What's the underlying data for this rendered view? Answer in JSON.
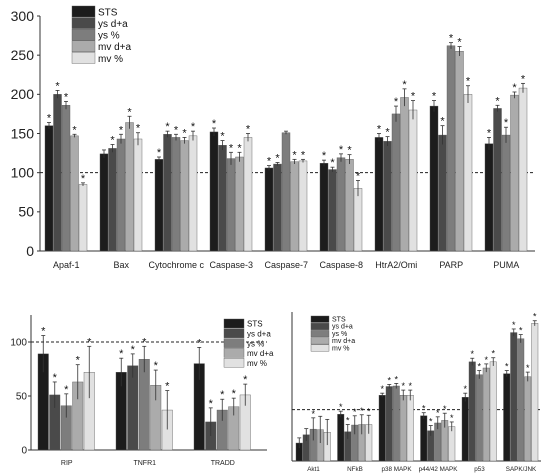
{
  "legend_labels": [
    "STS",
    "ys d+a",
    "ys %",
    "mv d+a",
    "mv %"
  ],
  "colors": {
    "series": [
      "#1c1c1c",
      "#4a4a4a",
      "#7d7d7d",
      "#ababab",
      "#e1e1e1"
    ],
    "reference_line": "#222222",
    "axis": "#333333"
  },
  "chart_data": [
    {
      "type": "bar",
      "panel": "top",
      "categories": [
        "Apaf-1",
        "Bax",
        "Cytochrome c",
        "Caspase-3",
        "Caspase-7",
        "Caspase-8",
        "HtrA2/Omi",
        "PARP",
        "PUMA"
      ],
      "series": [
        {
          "name": "STS",
          "values": [
            160,
            124,
            117,
            152,
            106,
            112,
            145,
            185,
            137
          ],
          "errors": [
            4,
            5,
            3,
            5,
            3,
            4,
            5,
            7,
            8
          ]
        },
        {
          "name": "ys d+a",
          "values": [
            200,
            131,
            149,
            135,
            111,
            104,
            140,
            148,
            182
          ],
          "errors": [
            5,
            5,
            4,
            6,
            2,
            3,
            6,
            12,
            4
          ]
        },
        {
          "name": "ys %",
          "values": [
            186,
            143,
            145,
            118,
            151,
            119,
            175,
            262,
            148
          ],
          "errors": [
            5,
            6,
            4,
            8,
            2,
            5,
            10,
            4,
            10
          ]
        },
        {
          "name": "mv d+a",
          "values": [
            147,
            164,
            141,
            120,
            114,
            117,
            196,
            255,
            199
          ],
          "errors": [
            2,
            8,
            4,
            6,
            3,
            6,
            11,
            6,
            4
          ]
        },
        {
          "name": "mv %",
          "values": [
            85,
            143,
            147,
            145,
            115,
            80,
            180,
            200,
            208
          ],
          "errors": [
            2,
            8,
            6,
            5,
            2,
            10,
            12,
            11,
            6
          ]
        }
      ],
      "stars": [
        [
          true,
          true,
          true,
          true,
          true
        ],
        [
          false,
          true,
          true,
          true,
          true
        ],
        [
          true,
          true,
          true,
          true,
          true
        ],
        [
          true,
          true,
          true,
          true,
          true
        ],
        [
          true,
          true,
          false,
          true,
          true
        ],
        [
          true,
          true,
          true,
          true,
          true
        ],
        [
          true,
          true,
          true,
          true,
          true
        ],
        [
          true,
          true,
          true,
          true,
          true
        ],
        [
          true,
          true,
          true,
          true,
          true
        ]
      ],
      "ylim": [
        0,
        300
      ],
      "yticks": [
        0,
        50,
        100,
        150,
        200,
        250,
        300
      ],
      "reference": 100,
      "legend": "top-left"
    },
    {
      "type": "bar",
      "panel": "bottom-left",
      "categories": [
        "RIP",
        "TNFR1",
        "TRADD"
      ],
      "series": [
        {
          "name": "STS",
          "values": [
            89,
            72,
            80
          ],
          "errors": [
            17,
            13,
            15
          ]
        },
        {
          "name": "ys d+a",
          "values": [
            51,
            78,
            26
          ],
          "errors": [
            12,
            11,
            13
          ]
        },
        {
          "name": "ys %",
          "values": [
            41,
            84,
            37
          ],
          "errors": [
            11,
            12,
            10
          ]
        },
        {
          "name": "mv d+a",
          "values": [
            63,
            60,
            40
          ],
          "errors": [
            16,
            14,
            8
          ]
        },
        {
          "name": "mv %",
          "values": [
            72,
            37,
            51
          ],
          "errors": [
            24,
            18,
            10
          ]
        }
      ],
      "stars": [
        [
          true,
          true,
          true,
          true,
          true
        ],
        [
          true,
          true,
          true,
          true,
          true
        ],
        [
          true,
          true,
          true,
          true,
          true
        ]
      ],
      "ylim": [
        0,
        125
      ],
      "yticks": [
        0,
        50,
        100
      ],
      "reference": 100,
      "legend": "top-right"
    },
    {
      "type": "bar",
      "panel": "bottom-right",
      "categories": [
        "Akt1",
        "NFkB",
        "p38 MAPK",
        "p44/42 MAPK",
        "p53",
        "SAPK/JNK"
      ],
      "series": [
        {
          "name": "STS",
          "values": [
            35,
            91,
            128,
            88,
            124,
            170
          ],
          "errors": [
            10,
            6,
            4,
            6,
            8,
            6
          ]
        },
        {
          "name": "ys d+a",
          "values": [
            51,
            57,
            145,
            59,
            193,
            250
          ],
          "errors": [
            12,
            14,
            4,
            10,
            7,
            7
          ]
        },
        {
          "name": "ys %",
          "values": [
            62,
            70,
            146,
            74,
            168,
            238
          ],
          "errors": [
            22,
            18,
            5,
            12,
            8,
            8
          ]
        },
        {
          "name": "mv d+a",
          "values": [
            61,
            71,
            128,
            79,
            181,
            164
          ],
          "errors": [
            26,
            19,
            10,
            14,
            8,
            9
          ]
        },
        {
          "name": "mv %",
          "values": [
            56,
            71,
            128,
            67,
            193,
            268
          ],
          "errors": [
            25,
            18,
            10,
            9,
            8,
            5
          ]
        }
      ],
      "stars": [
        [
          false,
          false,
          true,
          false,
          false
        ],
        [
          true,
          true,
          true,
          true,
          true
        ],
        [
          true,
          true,
          true,
          true,
          true
        ],
        [
          true,
          true,
          true,
          true,
          true
        ],
        [
          true,
          true,
          true,
          true,
          true
        ],
        [
          true,
          true,
          true,
          true,
          true
        ]
      ],
      "ylim": [
        0,
        290
      ],
      "yticks": [],
      "reference": 100,
      "legend": "top-left"
    }
  ]
}
